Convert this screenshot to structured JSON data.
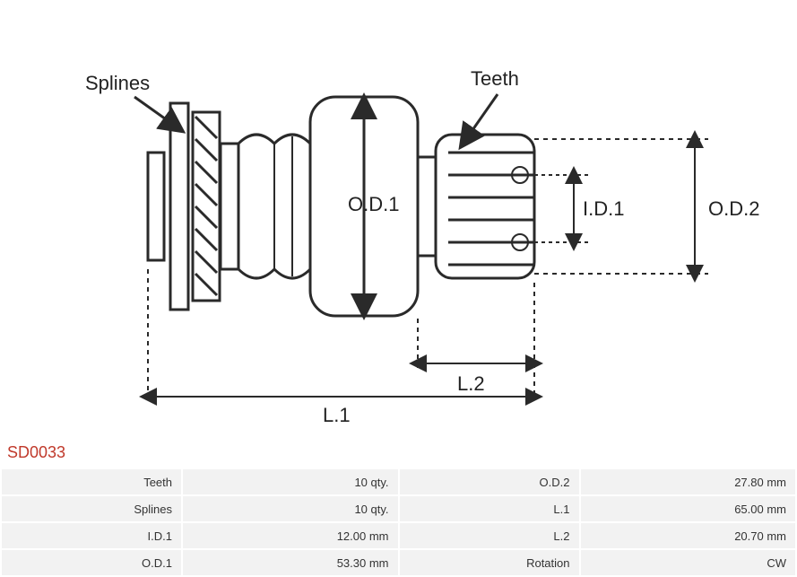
{
  "partCode": "SD0033",
  "diagram": {
    "labels": {
      "splines": "Splines",
      "teeth": "Teeth",
      "od1": "O.D.1",
      "od2": "O.D.2",
      "id1": "I.D.1",
      "l1": "L.1",
      "l2": "L.2"
    },
    "stroke": "#2a2a2a",
    "strokeWidth": 3,
    "textColor": "#222222",
    "fontSize": 22
  },
  "specs": {
    "rows": [
      {
        "label1": "Teeth",
        "value1": "10 qty.",
        "label2": "O.D.2",
        "value2": "27.80 mm"
      },
      {
        "label1": "Splines",
        "value1": "10 qty.",
        "label2": "L.1",
        "value2": "65.00 mm"
      },
      {
        "label1": "I.D.1",
        "value1": "12.00 mm",
        "label2": "L.2",
        "value2": "20.70 mm"
      },
      {
        "label1": "O.D.1",
        "value1": "53.30 mm",
        "label2": "Rotation",
        "value2": "CW"
      }
    ],
    "labelBg": "#f2f2f2",
    "valueBg": "#f2f2f2",
    "textColor": "#333333",
    "fontSize": 13
  }
}
